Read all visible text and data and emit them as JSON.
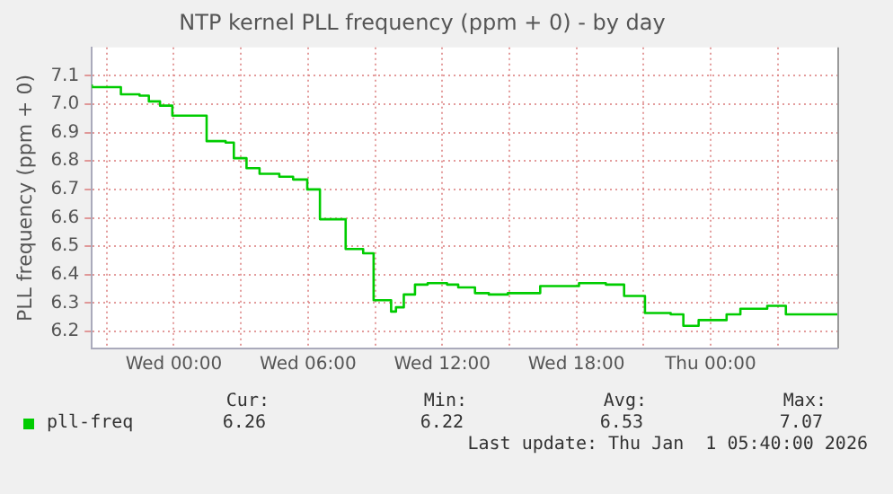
{
  "chart_data": {
    "type": "step",
    "title": "NTP kernel PLL frequency (ppm + 0) - by day",
    "ylabel": "PLL frequency (ppm + 0)",
    "xlim": [
      "2025-12-30T20:20",
      "2026-01-01T05:40"
    ],
    "xticks": [
      {
        "value": "2025-12-30T21:00",
        "label": null
      },
      {
        "value": "2025-12-31T00:00",
        "label": "Wed 00:00"
      },
      {
        "value": "2025-12-31T03:00",
        "label": null
      },
      {
        "value": "2025-12-31T06:00",
        "label": "Wed 06:00"
      },
      {
        "value": "2025-12-31T09:00",
        "label": null
      },
      {
        "value": "2025-12-31T12:00",
        "label": "Wed 12:00"
      },
      {
        "value": "2025-12-31T15:00",
        "label": null
      },
      {
        "value": "2025-12-31T18:00",
        "label": "Wed 18:00"
      },
      {
        "value": "2025-12-31T21:00",
        "label": null
      },
      {
        "value": "2026-01-01T00:00",
        "label": "Thu 00:00"
      },
      {
        "value": "2026-01-01T03:00",
        "label": null
      }
    ],
    "ylim": [
      6.14,
      7.2
    ],
    "yticks": [
      6.2,
      6.3,
      6.4,
      6.5,
      6.6,
      6.7,
      6.8,
      6.9,
      {
        "value": 7,
        "label": "7.0"
      },
      7.1
    ],
    "grid": true,
    "legend": "bottom",
    "series": [
      {
        "name": "pll-freq",
        "color": "#00cc00",
        "x": [
          "2025-12-30T20:20",
          "2025-12-30T21:38",
          "2025-12-30T22:28",
          "2025-12-30T22:53",
          "2025-12-30T23:23",
          "2025-12-30T23:56",
          "2025-12-31T01:28",
          "2025-12-31T02:19",
          "2025-12-31T02:41",
          "2025-12-31T03:15",
          "2025-12-31T03:50",
          "2025-12-31T04:43",
          "2025-12-31T05:20",
          "2025-12-31T05:58",
          "2025-12-31T06:32",
          "2025-12-31T07:41",
          "2025-12-31T08:28",
          "2025-12-31T08:56",
          "2025-12-31T09:43",
          "2025-12-31T09:56",
          "2025-12-31T10:17",
          "2025-12-31T10:47",
          "2025-12-31T11:21",
          "2025-12-31T12:13",
          "2025-12-31T12:43",
          "2025-12-31T13:28",
          "2025-12-31T14:05",
          "2025-12-31T14:56",
          "2025-12-31T16:23",
          "2025-12-31T18:07",
          "2025-12-31T19:19",
          "2025-12-31T20:08",
          "2025-12-31T21:04",
          "2025-12-31T22:13",
          "2025-12-31T22:47",
          "2025-12-31T23:28",
          "2026-01-01T00:43",
          "2026-01-01T01:20",
          "2026-01-01T02:32",
          "2026-01-01T03:22",
          "2026-01-01T04:11",
          "2026-01-01T05:40"
        ],
        "values": [
          7.07,
          7.06,
          7.035,
          7.03,
          7.01,
          6.995,
          6.96,
          6.87,
          6.865,
          6.81,
          6.775,
          6.755,
          6.745,
          6.735,
          6.7,
          6.595,
          6.49,
          6.475,
          6.31,
          6.27,
          6.285,
          6.33,
          6.365,
          6.37,
          6.365,
          6.355,
          6.335,
          6.33,
          6.335,
          6.36,
          6.37,
          6.365,
          6.325,
          6.265,
          6.26,
          6.22,
          6.24,
          6.26,
          6.28,
          6.29,
          6.26,
          6.26
        ]
      }
    ],
    "annotations": [
      "Cur:",
      "Min:",
      "Avg:",
      "Max:",
      "6.26",
      "6.22",
      "6.53",
      "7.07",
      "Last update: Thu Jan  1 05:40:00 2026"
    ]
  }
}
